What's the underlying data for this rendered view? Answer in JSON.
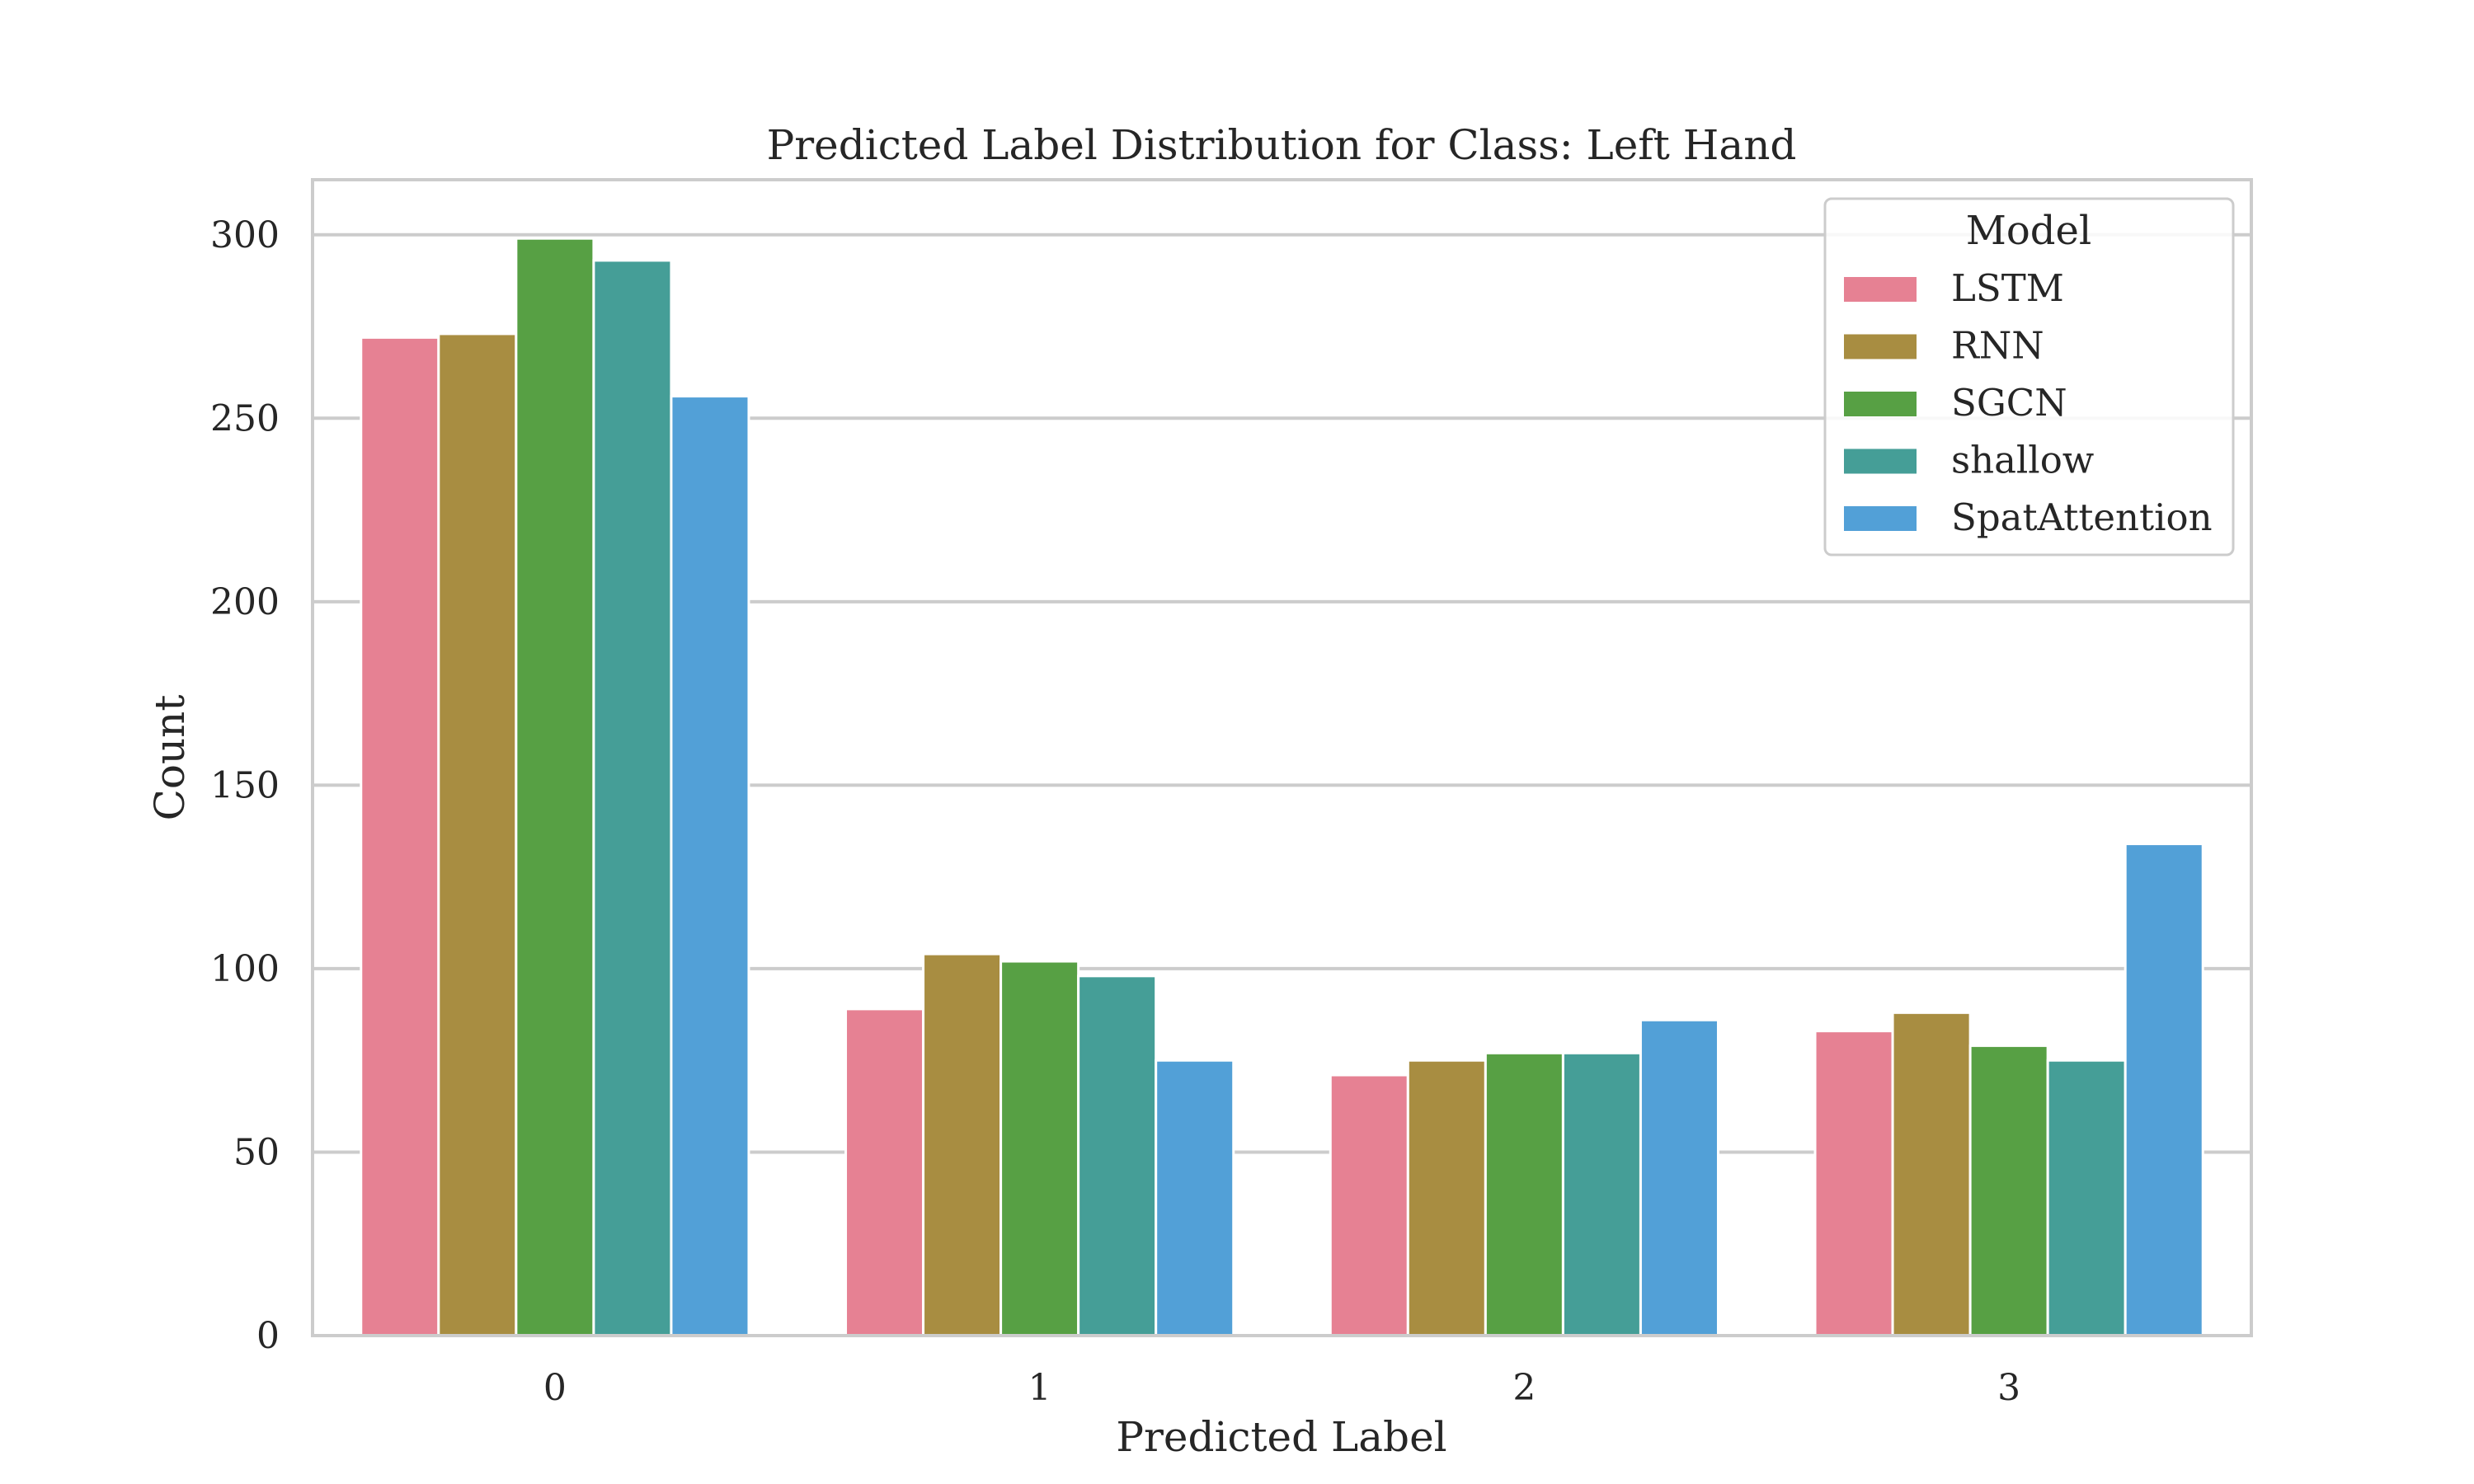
{
  "chart_data": {
    "type": "bar",
    "title": "Predicted Label Distribution for Class: Left Hand",
    "xlabel": "Predicted Label",
    "ylabel": "Count",
    "categories": [
      "0",
      "1",
      "2",
      "3"
    ],
    "ylim": [
      0,
      315
    ],
    "yticks": [
      0,
      50,
      100,
      150,
      200,
      250,
      300
    ],
    "grid": true,
    "legend": {
      "title": "Model",
      "placement": "top-right"
    },
    "series": [
      {
        "name": "LSTM",
        "color": "#e68193",
        "values": [
          272,
          89,
          71,
          83
        ]
      },
      {
        "name": "RNN",
        "color": "#a88d41",
        "values": [
          273,
          104,
          75,
          88
        ]
      },
      {
        "name": "SGCN",
        "color": "#57a044",
        "values": [
          299,
          102,
          77,
          79
        ]
      },
      {
        "name": "shallow",
        "color": "#459e97",
        "values": [
          293,
          98,
          77,
          75
        ]
      },
      {
        "name": "SpatAttention",
        "color": "#52a0d7",
        "values": [
          256,
          75,
          86,
          134
        ]
      }
    ]
  }
}
